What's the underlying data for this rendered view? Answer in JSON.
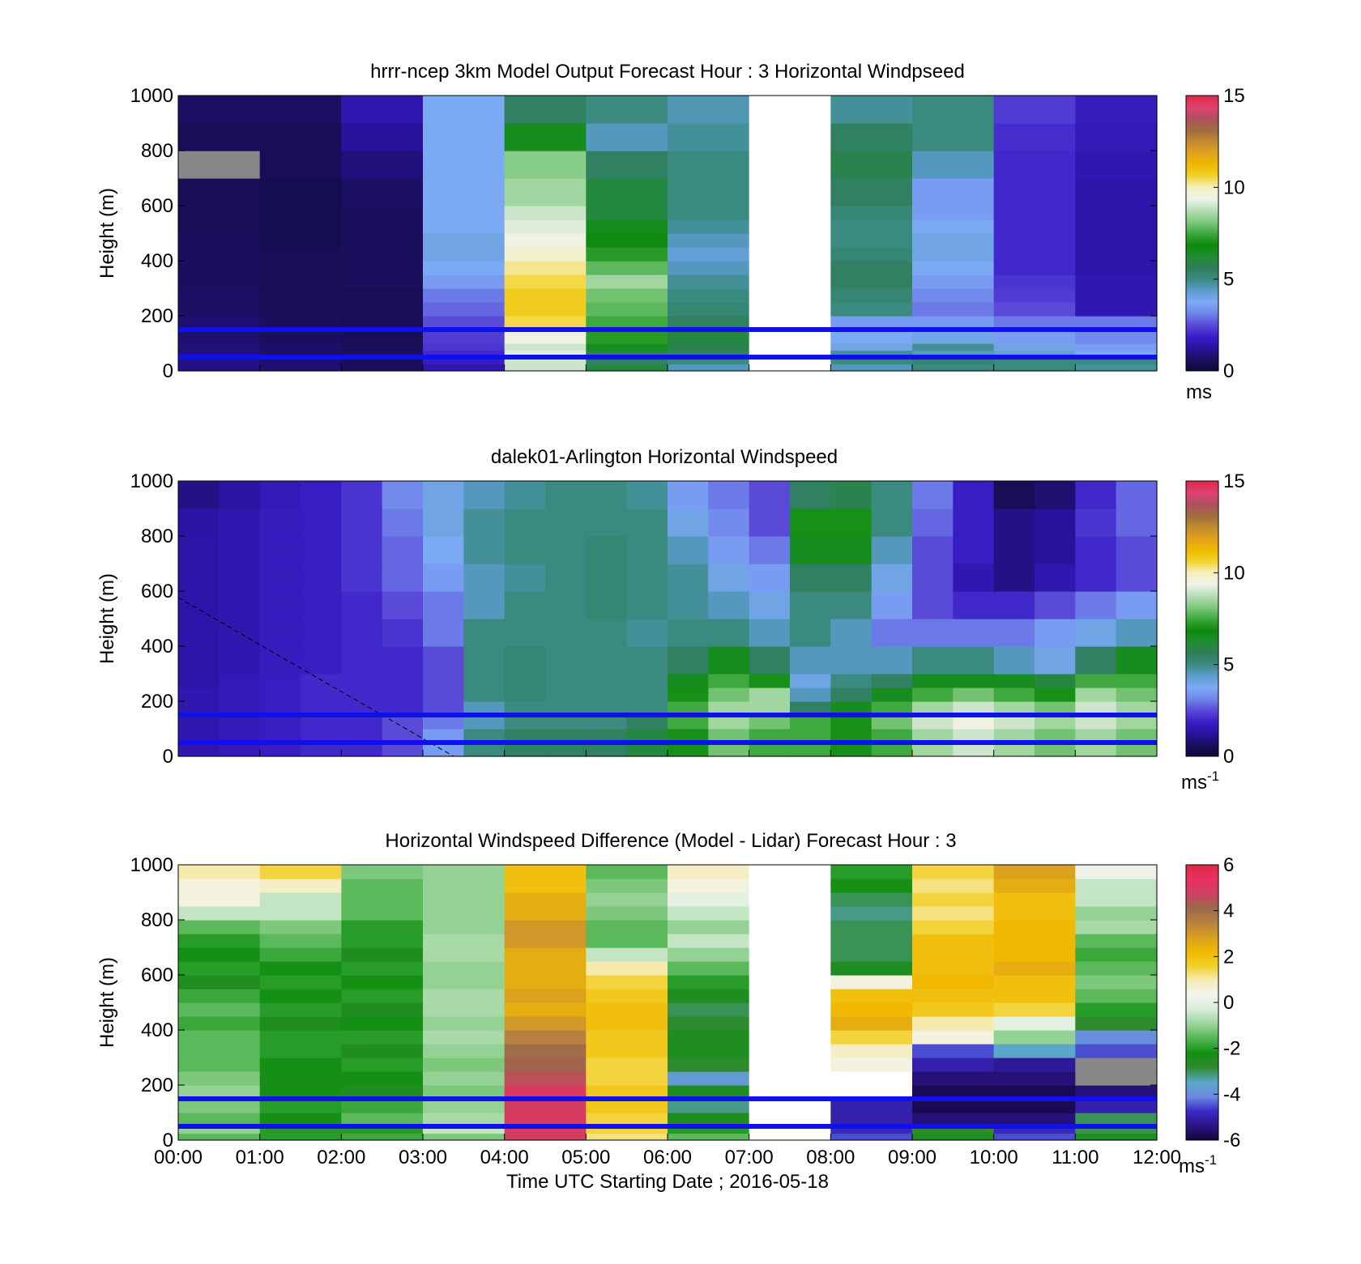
{
  "figure": {
    "xlabel": "Time UTC  Starting Date ; 2016-05-18",
    "x_ticks": [
      "00:00",
      "01:00",
      "02:00",
      "03:00",
      "04:00",
      "05:00",
      "06:00",
      "07:00",
      "08:00",
      "09:00",
      "10:00",
      "11:00",
      "12:00"
    ]
  },
  "colors": {
    "reference_lines": "#1010ee",
    "missing": "#888888",
    "wind_palette": [
      "#0a0a3c",
      "#1a0f5e",
      "#2a12a0",
      "#3a1fc8",
      "#5a4ad8",
      "#6f86ea",
      "#7eaaf6",
      "#5a9ccc",
      "#3a8a80",
      "#2e7d5a",
      "#1e8f2e",
      "#0c8a0c",
      "#3fa83f",
      "#7fc97f",
      "#b7deb7",
      "#eef3e8",
      "#f5efc0",
      "#f2d22a",
      "#f0b800",
      "#e0a020",
      "#c08a30",
      "#a06a40",
      "#b05060",
      "#e04070",
      "#e02848"
    ],
    "diff_palette": [
      "#12063a",
      "#2a1488",
      "#3a2ac8",
      "#6b8ae0",
      "#5aa8c8",
      "#2f8a2f",
      "#138f13",
      "#52b552",
      "#9ad49a",
      "#d6ecd6",
      "#f2f5ee",
      "#f6ecb8",
      "#f2d02a",
      "#f0b800",
      "#d8a020",
      "#b88040",
      "#9a6a4a",
      "#d04060",
      "#e83062",
      "#e02848"
    ]
  },
  "chart_data": [
    {
      "type": "heatmap",
      "title": "hrrr-ncep 3km Model Output   Forecast Hour : 3 Horizontal Windpseed",
      "ylabel": "Height (m)",
      "xlim": [
        "00:00",
        "12:00"
      ],
      "ylim": [
        0,
        1000
      ],
      "y_ticks": [
        0,
        200,
        400,
        600,
        800,
        1000
      ],
      "colorbar": {
        "min": 0,
        "max": 15,
        "ticks": [
          0,
          5,
          10,
          15
        ],
        "label": "ms"
      },
      "reference_lines_m": [
        50,
        150
      ],
      "x": [
        "00:00",
        "01:00",
        "02:00",
        "03:00",
        "04:00",
        "05:00",
        "06:00",
        "07:00",
        "08:00",
        "09:00",
        "10:00",
        "11:00"
      ],
      "levels_m": [
        0,
        25,
        50,
        75,
        100,
        150,
        200,
        250,
        300,
        350,
        400,
        450,
        500,
        550,
        600,
        700,
        800,
        900,
        1000
      ],
      "values": [
        [
          1.0,
          0.8,
          0.6,
          1.5,
          9.0,
          6.0,
          4.5,
          null,
          4.5,
          5.0,
          5.0,
          4.8
        ],
        [
          1.0,
          0.8,
          0.6,
          1.8,
          9.0,
          5.5,
          5.0,
          null,
          5.0,
          5.2,
          5.0,
          5.0
        ],
        [
          0.9,
          0.7,
          0.6,
          2.0,
          9.2,
          5.8,
          5.5,
          null,
          4.8,
          4.5,
          4.2,
          3.8
        ],
        [
          0.9,
          0.7,
          0.6,
          2.2,
          9.0,
          6.5,
          5.8,
          null,
          4.0,
          4.8,
          4.0,
          3.5
        ],
        [
          0.8,
          0.6,
          0.5,
          2.3,
          9.5,
          7.2,
          6.0,
          null,
          3.8,
          4.0,
          3.5,
          3.2
        ],
        [
          0.8,
          0.6,
          0.5,
          2.5,
          10.5,
          7.5,
          5.5,
          null,
          3.5,
          3.5,
          3.0,
          3.0
        ],
        [
          0.7,
          0.5,
          0.5,
          2.8,
          10.8,
          7.8,
          5.2,
          null,
          5.0,
          3.0,
          2.5,
          1.5
        ],
        [
          0.7,
          0.5,
          0.5,
          3.0,
          10.8,
          8.0,
          5.0,
          null,
          5.2,
          3.2,
          2.3,
          1.5
        ],
        [
          0.6,
          0.5,
          0.6,
          3.5,
          10.5,
          8.5,
          4.8,
          null,
          5.5,
          3.5,
          2.2,
          1.5
        ],
        [
          0.6,
          0.5,
          0.6,
          3.8,
          10.2,
          7.8,
          4.5,
          null,
          5.5,
          3.8,
          2.0,
          1.4
        ],
        [
          0.6,
          0.5,
          0.6,
          4.0,
          9.8,
          7.2,
          4.2,
          null,
          5.2,
          4.0,
          2.0,
          1.4
        ],
        [
          0.6,
          0.4,
          0.6,
          4.0,
          9.5,
          6.8,
          4.5,
          null,
          5.0,
          4.0,
          2.0,
          1.4
        ],
        [
          0.5,
          0.4,
          0.6,
          3.8,
          9.2,
          6.5,
          4.8,
          null,
          5.0,
          3.8,
          2.0,
          1.4
        ],
        [
          0.5,
          0.4,
          0.6,
          3.8,
          9.0,
          6.0,
          5.0,
          null,
          5.2,
          3.5,
          2.0,
          1.4
        ],
        [
          0.5,
          0.4,
          0.7,
          3.8,
          8.5,
          6.0,
          5.0,
          null,
          5.5,
          3.5,
          2.0,
          1.4
        ],
        [
          null,
          0.5,
          0.9,
          3.8,
          8.2,
          5.5,
          5.0,
          null,
          5.8,
          4.5,
          2.0,
          1.5
        ],
        [
          0.5,
          0.5,
          1.2,
          3.8,
          6.5,
          4.5,
          4.8,
          null,
          5.5,
          5.0,
          2.1,
          1.6
        ],
        [
          0.7,
          0.7,
          1.5,
          3.8,
          5.5,
          5.0,
          4.6,
          null,
          4.8,
          5.0,
          2.3,
          1.7
        ]
      ]
    },
    {
      "type": "heatmap",
      "title": "dalek01-Arlington  Horizontal Windspeed",
      "ylabel": "Height (m)",
      "xlim": [
        "00:00",
        "12:00"
      ],
      "ylim": [
        0,
        1000
      ],
      "y_ticks": [
        0,
        200,
        400,
        600,
        800,
        1000
      ],
      "colorbar": {
        "min": 0,
        "max": 15,
        "ticks": [
          0,
          5,
          10,
          15
        ],
        "label": "ms",
        "label_sup": "-1"
      },
      "reference_lines_m": [
        50,
        150
      ],
      "x": [
        "00:00",
        "00:30",
        "01:00",
        "01:30",
        "02:00",
        "02:30",
        "03:00",
        "03:30",
        "04:00",
        "04:30",
        "05:00",
        "05:30",
        "06:00",
        "06:30",
        "07:00",
        "07:30",
        "08:00",
        "08:30",
        "09:00",
        "09:30",
        "10:00",
        "10:30",
        "11:00",
        "11:30"
      ],
      "levels_m": [
        0,
        50,
        100,
        150,
        200,
        250,
        300,
        400,
        500,
        600,
        700,
        800,
        900,
        1000
      ],
      "values": [
        [
          1.5,
          1.6,
          1.8,
          2.0,
          2.0,
          2.5,
          3.5,
          5.0,
          5.5,
          5.5,
          5.5,
          6.0,
          7.0,
          8.0,
          7.5,
          7.5,
          7.0,
          7.5,
          8.5,
          9.0,
          8.5,
          8.0,
          8.5,
          8.0
        ],
        [
          1.5,
          1.6,
          1.8,
          2.0,
          2.0,
          2.5,
          3.5,
          5.0,
          5.5,
          5.5,
          5.5,
          6.0,
          7.0,
          8.0,
          7.5,
          7.5,
          7.0,
          7.5,
          8.5,
          9.0,
          8.5,
          8.0,
          8.5,
          8.0
        ],
        [
          1.5,
          1.6,
          1.8,
          2.0,
          2.0,
          2.5,
          3.0,
          4.5,
          5.0,
          5.0,
          5.0,
          5.5,
          7.5,
          8.5,
          8.0,
          7.5,
          7.0,
          8.0,
          9.0,
          9.5,
          9.0,
          8.5,
          9.0,
          8.5
        ],
        [
          1.5,
          1.6,
          1.8,
          2.0,
          2.0,
          2.0,
          2.5,
          4.5,
          5.0,
          5.0,
          5.0,
          5.0,
          7.5,
          8.5,
          8.5,
          5.5,
          6.5,
          7.5,
          8.5,
          9.0,
          8.5,
          8.0,
          9.0,
          8.5
        ],
        [
          1.5,
          1.6,
          1.8,
          2.0,
          2.0,
          2.0,
          2.5,
          5.0,
          5.2,
          5.0,
          5.0,
          5.0,
          7.0,
          8.0,
          8.5,
          4.5,
          5.5,
          6.5,
          7.5,
          8.0,
          7.5,
          7.0,
          8.5,
          8.0
        ],
        [
          1.4,
          1.6,
          1.8,
          2.0,
          2.0,
          2.0,
          2.5,
          5.0,
          5.2,
          5.0,
          5.0,
          5.0,
          6.5,
          7.5,
          7.0,
          4.0,
          5.0,
          5.5,
          6.5,
          6.5,
          6.5,
          6.0,
          7.5,
          7.5
        ],
        [
          1.4,
          1.5,
          1.7,
          1.8,
          2.0,
          2.0,
          2.5,
          5.0,
          5.2,
          5.0,
          5.0,
          5.0,
          5.5,
          6.5,
          5.5,
          4.5,
          4.5,
          4.5,
          5.0,
          5.0,
          4.5,
          4.0,
          5.5,
          6.5
        ],
        [
          1.4,
          1.5,
          1.7,
          1.8,
          2.0,
          2.2,
          3.0,
          5.0,
          5.0,
          5.0,
          5.0,
          4.8,
          5.0,
          5.0,
          4.5,
          5.0,
          4.5,
          3.0,
          3.0,
          3.0,
          3.0,
          3.5,
          4.0,
          4.5
        ],
        [
          1.4,
          1.5,
          1.7,
          1.8,
          2.0,
          2.5,
          3.0,
          4.5,
          5.0,
          5.0,
          5.2,
          5.0,
          4.8,
          4.5,
          4.0,
          5.0,
          5.0,
          3.5,
          2.5,
          2.0,
          2.0,
          2.5,
          3.0,
          3.5
        ],
        [
          1.4,
          1.5,
          1.7,
          1.8,
          2.2,
          2.8,
          3.5,
          4.5,
          4.8,
          5.0,
          5.2,
          5.0,
          4.8,
          4.0,
          3.5,
          5.5,
          5.5,
          4.0,
          2.5,
          1.5,
          1.0,
          1.5,
          2.0,
          2.5
        ],
        [
          1.4,
          1.5,
          1.7,
          1.8,
          2.2,
          2.8,
          3.8,
          4.8,
          5.0,
          5.0,
          5.2,
          5.0,
          4.5,
          3.5,
          3.0,
          6.5,
          6.5,
          4.5,
          2.5,
          1.8,
          1.0,
          1.2,
          2.0,
          2.5
        ],
        [
          1.3,
          1.5,
          1.7,
          1.8,
          2.2,
          3.0,
          4.0,
          4.8,
          5.0,
          5.0,
          5.0,
          5.0,
          4.0,
          3.2,
          2.5,
          7.0,
          7.0,
          5.0,
          2.8,
          1.8,
          1.0,
          1.2,
          2.2,
          2.8
        ],
        [
          1.0,
          1.3,
          1.6,
          1.8,
          2.2,
          3.2,
          4.0,
          4.5,
          4.8,
          5.0,
          5.0,
          4.8,
          3.5,
          3.0,
          2.5,
          5.5,
          5.8,
          5.0,
          3.0,
          1.8,
          0.5,
          0.8,
          2.0,
          2.8
        ]
      ]
    },
    {
      "type": "heatmap",
      "title": "Horizontal Windspeed Difference (Model - Lidar) Forecast Hour : 3",
      "ylabel": "Height (m)",
      "xlim": [
        "00:00",
        "12:00"
      ],
      "ylim": [
        0,
        1000
      ],
      "y_ticks": [
        0,
        200,
        400,
        600,
        800,
        1000
      ],
      "colorbar": {
        "min": -6,
        "max": 6,
        "ticks": [
          -6,
          -4,
          -2,
          0,
          2,
          4,
          6
        ],
        "label": "ms",
        "label_sup": "-1"
      },
      "reference_lines_m": [
        50,
        150
      ],
      "x": [
        "00:00",
        "01:00",
        "02:00",
        "03:00",
        "04:00",
        "05:00",
        "06:00",
        "07:00",
        "08:00",
        "09:00",
        "10:00",
        "11:00"
      ],
      "levels_m": [
        0,
        25,
        50,
        100,
        150,
        200,
        250,
        300,
        350,
        400,
        450,
        500,
        550,
        600,
        650,
        700,
        750,
        800,
        850,
        900,
        950,
        1000
      ],
      "values": [
        [
          -1.5,
          -2.0,
          -1.8,
          -1.2,
          4.8,
          1.2,
          -1.5,
          null,
          -4.5,
          -2.5,
          -4.5,
          -2.5
        ],
        [
          -1.0,
          -2.0,
          -2.0,
          -0.5,
          5.0,
          1.5,
          -2.0,
          null,
          -4.8,
          -2.8,
          -4.8,
          -3.0
        ],
        [
          -1.5,
          -2.2,
          -1.5,
          -0.8,
          5.0,
          1.5,
          -2.5,
          null,
          -5.0,
          -5.5,
          -5.5,
          -3.0
        ],
        [
          -1.2,
          -2.0,
          -1.8,
          -1.0,
          4.8,
          1.8,
          -3.2,
          null,
          -5.0,
          -5.8,
          -5.8,
          -5.0
        ],
        [
          -1.0,
          -2.2,
          -2.5,
          -1.2,
          5.0,
          1.8,
          -2.5,
          null,
          null,
          -5.8,
          -5.8,
          -5.5
        ],
        [
          -1.2,
          -2.3,
          -2.2,
          -1.0,
          4.5,
          1.5,
          -3.8,
          null,
          null,
          -5.5,
          -5.5,
          null
        ],
        [
          -1.5,
          -2.2,
          -2.0,
          -1.2,
          4.2,
          1.5,
          -2.8,
          null,
          0.5,
          -5.0,
          -5.2,
          null
        ],
        [
          -1.5,
          -2.0,
          -2.5,
          -1.0,
          4.0,
          1.8,
          -2.5,
          null,
          0.8,
          -4.5,
          -3.5,
          -4.5
        ],
        [
          -1.5,
          -2.0,
          -2.0,
          -0.8,
          3.5,
          1.8,
          -2.5,
          null,
          1.5,
          0.5,
          -1.0,
          -4.0
        ],
        [
          -1.8,
          -2.5,
          -2.2,
          -1.0,
          3.0,
          2.0,
          -2.8,
          null,
          2.5,
          1.0,
          0.0,
          -2.8
        ],
        [
          -1.5,
          -2.0,
          -2.5,
          -0.8,
          2.5,
          2.0,
          -3.0,
          null,
          2.2,
          1.8,
          1.5,
          -2.0
        ],
        [
          -1.8,
          -2.2,
          -2.0,
          -0.8,
          2.8,
          1.8,
          -2.5,
          null,
          2.0,
          2.0,
          2.0,
          -1.5
        ],
        [
          -2.5,
          -2.0,
          -2.2,
          -1.0,
          2.5,
          1.5,
          -2.0,
          null,
          0.5,
          2.2,
          2.0,
          -1.2
        ],
        [
          -2.0,
          -2.2,
          -2.0,
          -1.0,
          2.5,
          1.0,
          -1.5,
          null,
          -2.5,
          2.0,
          2.5,
          -1.5
        ],
        [
          -2.2,
          -1.8,
          -2.5,
          -0.8,
          2.5,
          -0.5,
          -1.0,
          null,
          -3.0,
          2.0,
          2.2,
          -1.8
        ],
        [
          -2.0,
          -1.5,
          -2.0,
          -0.8,
          3.0,
          -1.5,
          -0.5,
          null,
          -3.0,
          2.0,
          2.2,
          -1.5
        ],
        [
          -1.5,
          -1.2,
          -2.0,
          -1.0,
          3.0,
          -1.5,
          -1.0,
          null,
          -3.0,
          1.5,
          2.2,
          -0.8
        ],
        [
          -0.5,
          -0.5,
          -1.5,
          -1.0,
          2.5,
          -1.2,
          -0.5,
          null,
          -3.2,
          1.2,
          2.0,
          -1.0
        ],
        [
          0.5,
          -0.5,
          -1.5,
          -1.0,
          2.5,
          -1.0,
          0.0,
          null,
          -3.0,
          1.5,
          2.0,
          -0.5
        ],
        [
          0.5,
          0.8,
          -1.5,
          -1.0,
          2.0,
          -1.2,
          0.5,
          null,
          -2.2,
          1.2,
          2.5,
          -0.5
        ],
        [
          1.0,
          1.5,
          -1.2,
          -1.0,
          2.0,
          -1.5,
          0.8,
          null,
          -2.0,
          1.5,
          2.8,
          0.2
        ]
      ]
    }
  ]
}
